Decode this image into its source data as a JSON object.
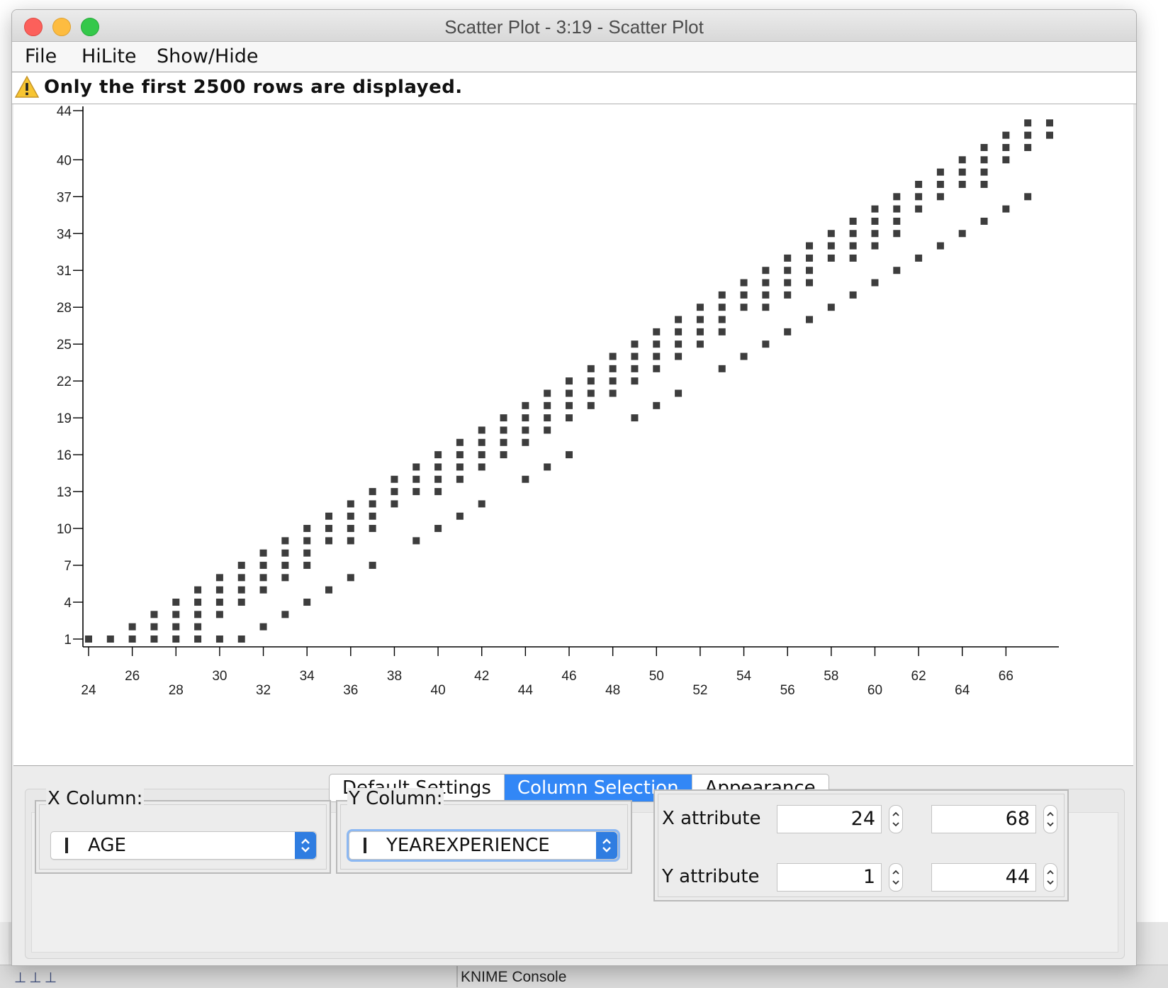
{
  "window": {
    "title": "Scatter Plot - 3:19 - Scatter Plot"
  },
  "menu": {
    "items": [
      "File",
      "HiLite",
      "Show/Hide"
    ]
  },
  "warning": {
    "text": "Only the first 2500 rows are displayed.",
    "icon": "warning-triangle-icon"
  },
  "chart_data": {
    "type": "scatter",
    "xlabel": "",
    "ylabel": "",
    "xlim": [
      24,
      68
    ],
    "ylim": [
      1,
      44
    ],
    "x_ticks": [
      24,
      26,
      28,
      30,
      32,
      34,
      36,
      38,
      40,
      42,
      44,
      46,
      48,
      50,
      52,
      54,
      56,
      58,
      60,
      62,
      64,
      66
    ],
    "y_ticks": [
      1,
      4,
      7,
      10,
      13,
      16,
      19,
      22,
      25,
      28,
      31,
      34,
      37,
      40,
      44
    ],
    "point_color": "#3d3d3d",
    "series": [
      {
        "points": [
          [
            24,
            1
          ],
          [
            25,
            1
          ],
          [
            26,
            1
          ],
          [
            26,
            2
          ],
          [
            27,
            1
          ],
          [
            27,
            2
          ],
          [
            27,
            3
          ],
          [
            28,
            1
          ],
          [
            28,
            2
          ],
          [
            28,
            3
          ],
          [
            28,
            4
          ],
          [
            29,
            1
          ],
          [
            29,
            2
          ],
          [
            29,
            3
          ],
          [
            29,
            4
          ],
          [
            29,
            5
          ],
          [
            30,
            1
          ],
          [
            30,
            3
          ],
          [
            30,
            4
          ],
          [
            30,
            5
          ],
          [
            30,
            6
          ],
          [
            31,
            1
          ],
          [
            31,
            4
          ],
          [
            31,
            5
          ],
          [
            31,
            6
          ],
          [
            31,
            7
          ],
          [
            32,
            2
          ],
          [
            32,
            5
          ],
          [
            32,
            6
          ],
          [
            32,
            7
          ],
          [
            32,
            8
          ],
          [
            33,
            3
          ],
          [
            33,
            6
          ],
          [
            33,
            7
          ],
          [
            33,
            8
          ],
          [
            33,
            9
          ],
          [
            34,
            4
          ],
          [
            34,
            7
          ],
          [
            34,
            8
          ],
          [
            34,
            9
          ],
          [
            34,
            10
          ],
          [
            35,
            5
          ],
          [
            35,
            9
          ],
          [
            35,
            10
          ],
          [
            35,
            11
          ],
          [
            36,
            6
          ],
          [
            36,
            9
          ],
          [
            36,
            10
          ],
          [
            36,
            11
          ],
          [
            36,
            12
          ],
          [
            37,
            7
          ],
          [
            37,
            10
          ],
          [
            37,
            11
          ],
          [
            37,
            12
          ],
          [
            37,
            13
          ],
          [
            38,
            12
          ],
          [
            38,
            13
          ],
          [
            38,
            14
          ],
          [
            39,
            9
          ],
          [
            39,
            13
          ],
          [
            39,
            14
          ],
          [
            39,
            15
          ],
          [
            40,
            10
          ],
          [
            40,
            13
          ],
          [
            40,
            14
          ],
          [
            40,
            15
          ],
          [
            40,
            16
          ],
          [
            41,
            11
          ],
          [
            41,
            14
          ],
          [
            41,
            15
          ],
          [
            41,
            16
          ],
          [
            41,
            17
          ],
          [
            42,
            12
          ],
          [
            42,
            15
          ],
          [
            42,
            16
          ],
          [
            42,
            17
          ],
          [
            42,
            18
          ],
          [
            43,
            16
          ],
          [
            43,
            17
          ],
          [
            43,
            18
          ],
          [
            43,
            19
          ],
          [
            44,
            14
          ],
          [
            44,
            17
          ],
          [
            44,
            18
          ],
          [
            44,
            19
          ],
          [
            44,
            20
          ],
          [
            45,
            15
          ],
          [
            45,
            18
          ],
          [
            45,
            19
          ],
          [
            45,
            20
          ],
          [
            45,
            21
          ],
          [
            46,
            16
          ],
          [
            46,
            19
          ],
          [
            46,
            20
          ],
          [
            46,
            21
          ],
          [
            46,
            22
          ],
          [
            47,
            20
          ],
          [
            47,
            21
          ],
          [
            47,
            22
          ],
          [
            47,
            23
          ],
          [
            48,
            21
          ],
          [
            48,
            22
          ],
          [
            48,
            23
          ],
          [
            48,
            24
          ],
          [
            49,
            19
          ],
          [
            49,
            22
          ],
          [
            49,
            23
          ],
          [
            49,
            24
          ],
          [
            49,
            25
          ],
          [
            50,
            20
          ],
          [
            50,
            23
          ],
          [
            50,
            24
          ],
          [
            50,
            25
          ],
          [
            50,
            26
          ],
          [
            51,
            21
          ],
          [
            51,
            24
          ],
          [
            51,
            25
          ],
          [
            51,
            26
          ],
          [
            51,
            27
          ],
          [
            52,
            25
          ],
          [
            52,
            26
          ],
          [
            52,
            27
          ],
          [
            52,
            28
          ],
          [
            53,
            23
          ],
          [
            53,
            26
          ],
          [
            53,
            27
          ],
          [
            53,
            28
          ],
          [
            53,
            29
          ],
          [
            54,
            24
          ],
          [
            54,
            28
          ],
          [
            54,
            29
          ],
          [
            54,
            30
          ],
          [
            55,
            25
          ],
          [
            55,
            28
          ],
          [
            55,
            29
          ],
          [
            55,
            30
          ],
          [
            55,
            31
          ],
          [
            56,
            26
          ],
          [
            56,
            29
          ],
          [
            56,
            30
          ],
          [
            56,
            31
          ],
          [
            56,
            32
          ],
          [
            57,
            27
          ],
          [
            57,
            30
          ],
          [
            57,
            31
          ],
          [
            57,
            32
          ],
          [
            57,
            33
          ],
          [
            58,
            28
          ],
          [
            58,
            32
          ],
          [
            58,
            33
          ],
          [
            58,
            34
          ],
          [
            59,
            29
          ],
          [
            59,
            32
          ],
          [
            59,
            33
          ],
          [
            59,
            34
          ],
          [
            59,
            35
          ],
          [
            60,
            30
          ],
          [
            60,
            33
          ],
          [
            60,
            34
          ],
          [
            60,
            35
          ],
          [
            60,
            36
          ],
          [
            61,
            31
          ],
          [
            61,
            34
          ],
          [
            61,
            35
          ],
          [
            61,
            36
          ],
          [
            61,
            37
          ],
          [
            62,
            32
          ],
          [
            62,
            36
          ],
          [
            62,
            37
          ],
          [
            62,
            38
          ],
          [
            63,
            33
          ],
          [
            63,
            37
          ],
          [
            63,
            38
          ],
          [
            63,
            39
          ],
          [
            64,
            34
          ],
          [
            64,
            38
          ],
          [
            64,
            39
          ],
          [
            64,
            40
          ],
          [
            65,
            35
          ],
          [
            65,
            38
          ],
          [
            65,
            39
          ],
          [
            65,
            40
          ],
          [
            65,
            41
          ],
          [
            66,
            36
          ],
          [
            66,
            40
          ],
          [
            66,
            41
          ],
          [
            66,
            42
          ],
          [
            67,
            37
          ],
          [
            67,
            41
          ],
          [
            67,
            42
          ],
          [
            67,
            43
          ],
          [
            68,
            42
          ],
          [
            68,
            43
          ]
        ]
      }
    ]
  },
  "tabs": [
    {
      "label": "Default Settings",
      "active": false
    },
    {
      "label": "Column Selection",
      "active": true
    },
    {
      "label": "Appearance",
      "active": false
    }
  ],
  "columns": {
    "x_label": "X Column:",
    "x_value": "AGE",
    "y_label": "Y Column:",
    "y_value": "YEAREXPERIENCE"
  },
  "ranges": {
    "x_label": "X attribute",
    "x_min": "24",
    "x_max": "68",
    "y_label": "Y attribute",
    "y_min": "1",
    "y_max": "44"
  },
  "background": {
    "console_tab": "KNIME Console"
  }
}
